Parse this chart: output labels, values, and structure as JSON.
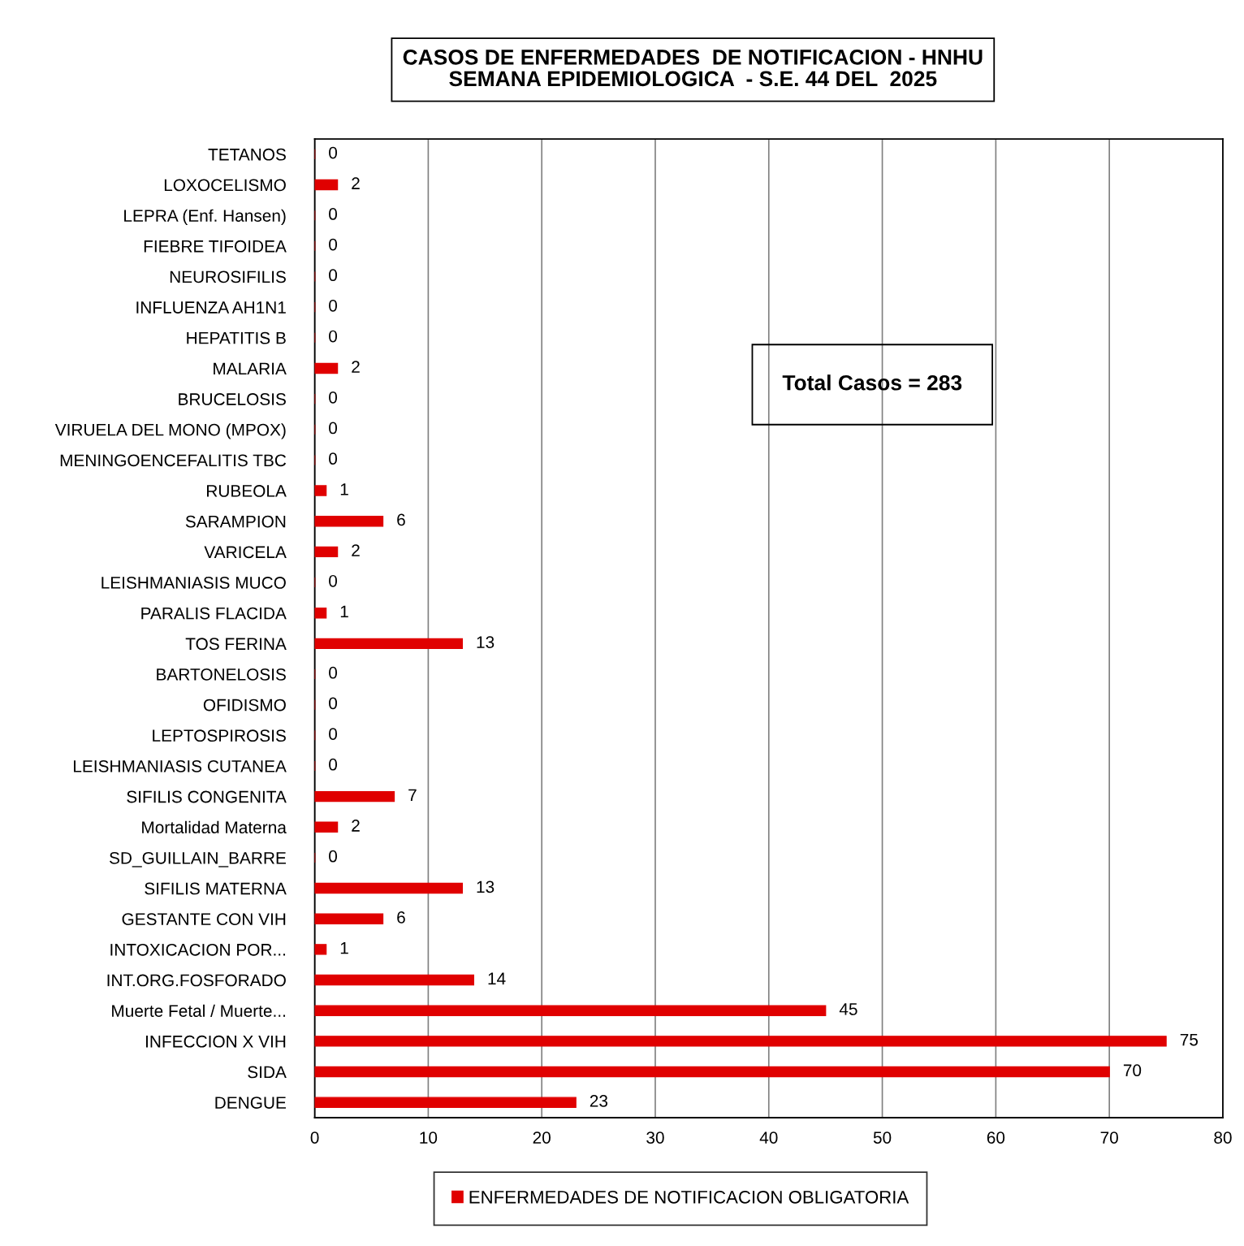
{
  "chart_data": {
    "type": "bar",
    "orientation": "horizontal",
    "title": "CASOS DE ENFERMEDADES  DE NOTIFICACION - HNHU\nSEMANA EPIDEMIOLOGICA  - S.E. 44 DEL  2025",
    "categories": [
      "TETANOS",
      "LOXOCELISMO",
      "LEPRA (Enf. Hansen)",
      "FIEBRE TIFOIDEA",
      "NEUROSIFILIS",
      "INFLUENZA AH1N1",
      "HEPATITIS B",
      "MALARIA",
      "BRUCELOSIS",
      "VIRUELA DEL MONO (MPOX)",
      "MENINGOENCEFALITIS TBC",
      "RUBEOLA",
      "SARAMPION",
      "VARICELA",
      "LEISHMANIASIS MUCO",
      "PARALIS FLACIDA",
      "TOS FERINA",
      "BARTONELOSIS",
      "OFIDISMO",
      "LEPTOSPIROSIS",
      "LEISHMANIASIS CUTANEA",
      "SIFILIS CONGENITA",
      "Mortalidad Materna",
      "SD_GUILLAIN_BARRE",
      "SIFILIS MATERNA",
      "GESTANTE CON VIH",
      "INTOXICACION POR...",
      "INT.ORG.FOSFORADO",
      "Muerte Fetal / Muerte...",
      "INFECCION X VIH",
      "SIDA",
      "DENGUE"
    ],
    "series": [
      {
        "name": "ENFERMEDADES DE NOTIFICACION OBLIGATORIA",
        "color": "#e00000",
        "values": [
          0,
          2,
          0,
          0,
          0,
          0,
          0,
          2,
          0,
          0,
          0,
          1,
          6,
          2,
          0,
          1,
          13,
          0,
          0,
          0,
          0,
          7,
          2,
          0,
          13,
          6,
          1,
          14,
          45,
          75,
          70,
          23
        ]
      }
    ],
    "xlim": [
      0,
      80
    ],
    "xticks": [
      0,
      10,
      20,
      30,
      40,
      50,
      60,
      70,
      80
    ],
    "grid": "x",
    "legend": "bottom",
    "data_labels": true,
    "annotations": [
      "Total Casos = 283"
    ]
  }
}
